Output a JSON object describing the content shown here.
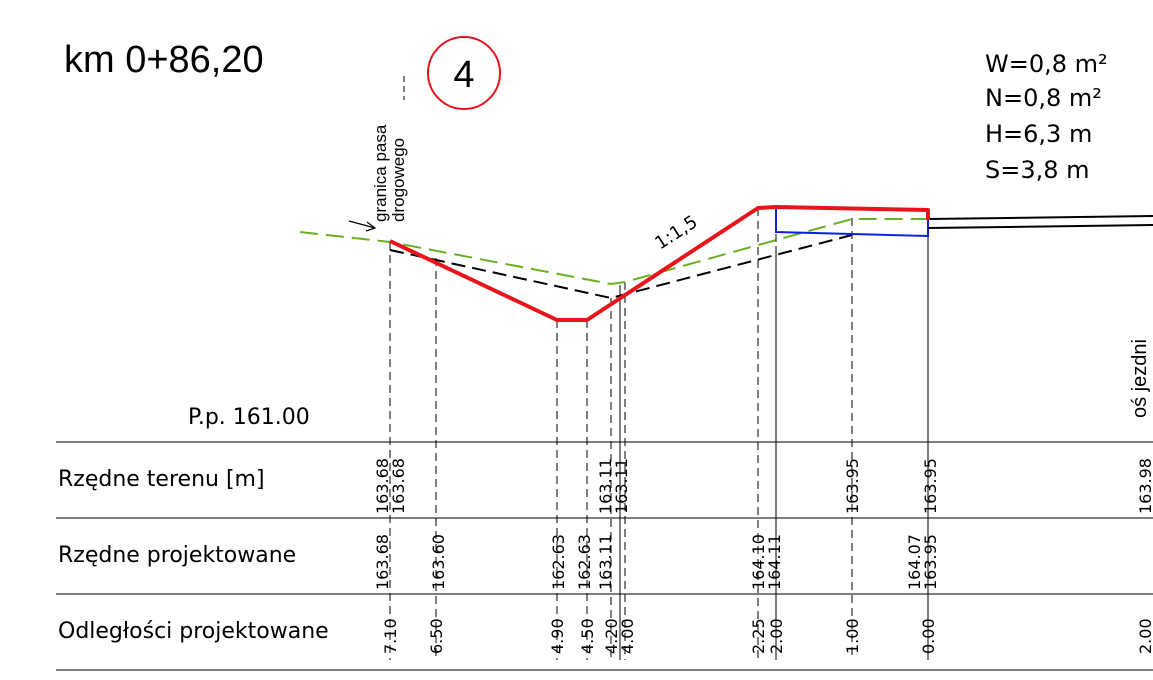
{
  "title": "km 0+86,20",
  "section_number": "4",
  "quantities": {
    "w": "W=0,8  m²",
    "n": "N=0,8  m²",
    "h": "H=6,3  m",
    "s": "S=3,8  m"
  },
  "labels": {
    "boundary_line1": "granica pasa",
    "boundary_line2": "drogowego",
    "slope": "1:1,5",
    "axis": "oś jezdni",
    "datum": "P.p. 161.00"
  },
  "table": {
    "row_terrain": "Rzędne terenu [m]",
    "row_design": "Rzędne projektowane",
    "row_distance": "Odległości projektowane",
    "terrain_values": [
      "163.68",
      "163.68",
      "163.11",
      "163.11",
      "163.95",
      "163.95",
      "163.98"
    ],
    "design_values": [
      "163.68",
      "163.60",
      "162.63",
      "162.63",
      "163.11",
      "164.10",
      "164.11",
      "164.07",
      "163.95"
    ],
    "distance_values": [
      "7.10",
      "6.50",
      "4.90",
      "4.50",
      "4.20",
      "4.00",
      "2.25",
      "2.00",
      "1.00",
      "0.00",
      "2.00"
    ]
  },
  "colors": {
    "design_line": "#e8141c",
    "terrain_line": "#6ab023",
    "existing_line": "#000000",
    "pavement_box": "#1020e0",
    "badge_circle": "#e8141c"
  }
}
